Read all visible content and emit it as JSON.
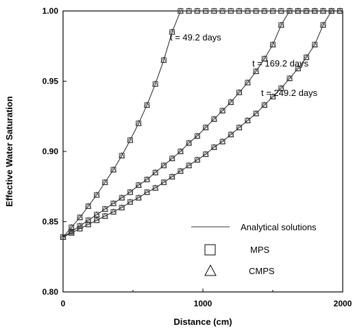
{
  "chart_data": {
    "type": "line",
    "xlabel": "Distance (cm)",
    "ylabel": "Effective Water Saturation",
    "xlim": [
      0,
      2000
    ],
    "ylim": [
      0.8,
      1.0
    ],
    "x_ticks": [
      "0",
      "1000",
      "2000"
    ],
    "y_ticks": [
      "0.80",
      "0.85",
      "0.90",
      "0.95",
      "1.00"
    ],
    "grid": false,
    "legend_position": "bottom-right",
    "legend": {
      "analytical": "Analytical solutions",
      "mps": "MPS",
      "cmps": "CMPS"
    },
    "series": [
      {
        "annotation": "t = 49.2 days",
        "x": [
          0,
          60,
          120,
          180,
          240,
          300,
          360,
          420,
          480,
          540,
          600,
          660,
          720,
          780,
          840,
          900,
          960,
          1020,
          1080,
          1140,
          1200,
          1260,
          1320,
          1380,
          1440,
          1500,
          1560,
          1620,
          1680,
          1740,
          1800,
          1860,
          1920,
          1980
        ],
        "y": [
          0.839,
          0.846,
          0.853,
          0.861,
          0.869,
          0.878,
          0.887,
          0.897,
          0.908,
          0.92,
          0.933,
          0.948,
          0.965,
          0.985,
          1.0,
          1.0,
          1.0,
          1.0,
          1.0,
          1.0,
          1.0,
          1.0,
          1.0,
          1.0,
          1.0,
          1.0,
          1.0,
          1.0,
          1.0,
          1.0,
          1.0,
          1.0,
          1.0,
          1.0
        ]
      },
      {
        "annotation": "t = 169.2 days",
        "x": [
          0,
          60,
          120,
          180,
          240,
          300,
          360,
          420,
          480,
          540,
          600,
          660,
          720,
          780,
          840,
          900,
          960,
          1020,
          1080,
          1140,
          1200,
          1260,
          1320,
          1380,
          1440,
          1500,
          1560,
          1620,
          1680,
          1740,
          1800,
          1860,
          1920,
          1980
        ],
        "y": [
          0.839,
          0.843,
          0.847,
          0.851,
          0.855,
          0.859,
          0.863,
          0.867,
          0.871,
          0.876,
          0.88,
          0.885,
          0.89,
          0.895,
          0.9,
          0.906,
          0.911,
          0.917,
          0.923,
          0.929,
          0.935,
          0.942,
          0.949,
          0.957,
          0.966,
          0.976,
          0.99,
          1.0,
          1.0,
          1.0,
          1.0,
          1.0,
          1.0,
          1.0
        ]
      },
      {
        "annotation": "t = 249.2 days",
        "x": [
          0,
          60,
          120,
          180,
          240,
          300,
          360,
          420,
          480,
          540,
          600,
          660,
          720,
          780,
          840,
          900,
          960,
          1020,
          1080,
          1140,
          1200,
          1260,
          1320,
          1380,
          1440,
          1500,
          1560,
          1620,
          1680,
          1740,
          1800,
          1860,
          1920,
          1980
        ],
        "y": [
          0.839,
          0.842,
          0.845,
          0.848,
          0.851,
          0.854,
          0.857,
          0.86,
          0.864,
          0.867,
          0.871,
          0.874,
          0.878,
          0.882,
          0.886,
          0.89,
          0.894,
          0.898,
          0.903,
          0.907,
          0.912,
          0.917,
          0.922,
          0.927,
          0.933,
          0.939,
          0.945,
          0.952,
          0.959,
          0.967,
          0.976,
          0.99,
          1.0,
          1.0
        ]
      }
    ]
  }
}
